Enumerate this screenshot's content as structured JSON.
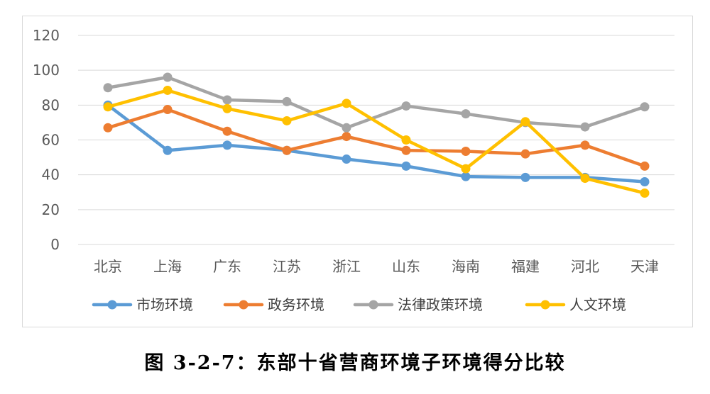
{
  "caption": "图 3-2-7：东部十省营商环境子环境得分比较",
  "chart_data": {
    "type": "line",
    "categories": [
      "北京",
      "上海",
      "广东",
      "江苏",
      "浙江",
      "山东",
      "海南",
      "福建",
      "河北",
      "天津"
    ],
    "ylim": [
      0,
      120
    ],
    "yticks": [
      0,
      20,
      40,
      60,
      80,
      100,
      120
    ],
    "grid": true,
    "legend_position": "bottom",
    "series": [
      {
        "name": "市场环境",
        "color": "#5B9BD5",
        "values": [
          80,
          54,
          57,
          54,
          49,
          45,
          39,
          38.5,
          38.5,
          36
        ]
      },
      {
        "name": "政务环境",
        "color": "#ED7D31",
        "values": [
          67,
          77.5,
          65,
          54,
          62,
          54,
          53.5,
          52,
          57,
          45
        ]
      },
      {
        "name": "法律政策环境",
        "color": "#A5A5A5",
        "values": [
          90,
          96,
          83,
          82,
          67,
          79.5,
          75,
          70,
          67.5,
          79
        ]
      },
      {
        "name": "人文环境",
        "color": "#FFC000",
        "values": [
          79,
          88.5,
          78,
          71,
          81,
          60,
          43.5,
          70.5,
          38,
          29.5
        ]
      }
    ]
  }
}
